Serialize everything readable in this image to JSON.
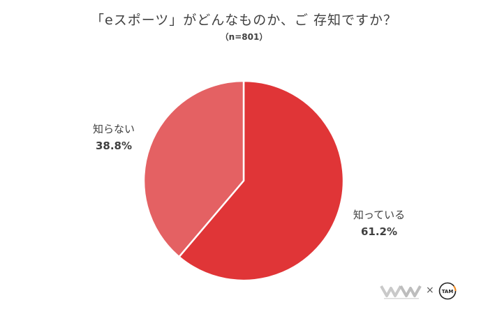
{
  "chart_data": {
    "type": "pie",
    "title": "「eスポーツ」がどんなものか、ご 存知ですか？",
    "subtitle": "（n=801）",
    "slices": [
      {
        "label": "知っている",
        "value": 61.2,
        "value_label": "61.2%",
        "color": "#e03537"
      },
      {
        "label": "知らない",
        "value": 38.8,
        "value_label": "38.8%",
        "color": "#e46163"
      }
    ],
    "start_angle_deg": 0,
    "direction": "clockwise",
    "legend": "none"
  },
  "logos": {
    "separator": "×",
    "tam_text": "TAM"
  }
}
